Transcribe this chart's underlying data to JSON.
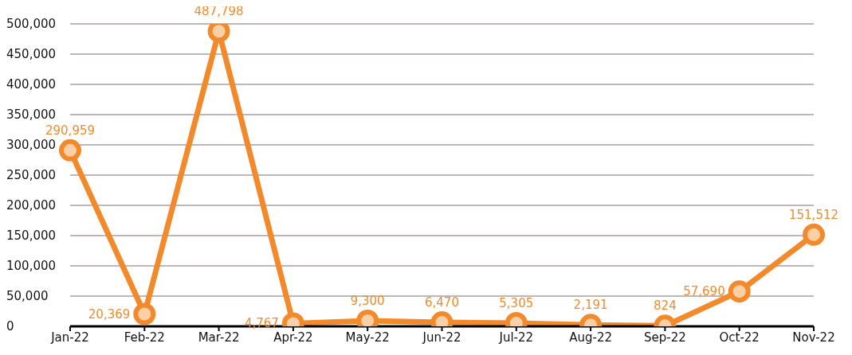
{
  "chart_data": {
    "type": "line",
    "categories": [
      "Jan-22",
      "Feb-22",
      "Mar-22",
      "Apr-22",
      "May-22",
      "Jun-22",
      "Jul-22",
      "Aug-22",
      "Sep-22",
      "Oct-22",
      "Nov-22"
    ],
    "series": [
      {
        "color": "#f28a2b",
        "values": [
          290959,
          20369,
          487798,
          4767,
          9300,
          6470,
          5305,
          2191,
          824,
          57690,
          151512
        ]
      }
    ],
    "ylim": [
      0,
      500000
    ],
    "yticks": [
      {
        "value": 0,
        "label": "0"
      },
      {
        "value": 50000,
        "label": "50,000"
      },
      {
        "value": 100000,
        "label": "100,000"
      },
      {
        "value": 150000,
        "label": "150,000"
      },
      {
        "value": 200000,
        "label": "200,000"
      },
      {
        "value": 250000,
        "label": "250,000"
      },
      {
        "value": 300000,
        "label": "300,000"
      },
      {
        "value": 350000,
        "label": "350,000"
      },
      {
        "value": 400000,
        "label": "400,000"
      },
      {
        "value": 450000,
        "label": "450,000"
      },
      {
        "value": 500000,
        "label": "500,000"
      }
    ],
    "value_labels": [
      "290,959",
      "20,369",
      "487,798",
      "4,767",
      "9,300",
      "6,470",
      "5,305",
      "2,191",
      "824",
      "57,690",
      "151,512"
    ],
    "grid": "y",
    "marker": "circle",
    "line_style": "solid"
  }
}
